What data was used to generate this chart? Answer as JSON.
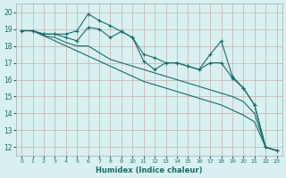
{
  "xlabel": "Humidex (Indice chaleur)",
  "ylabel": "",
  "bg_color": "#d8f0f0",
  "plot_bg_color": "#d8f0f0",
  "grid_color": "#c8b8b8",
  "line_color": "#1a6b6b",
  "xlim": [
    -0.5,
    23.5
  ],
  "ylim": [
    11.5,
    20.5
  ],
  "yticks": [
    12,
    13,
    14,
    15,
    16,
    17,
    18,
    19,
    20
  ],
  "xticks": [
    0,
    1,
    2,
    3,
    4,
    5,
    6,
    7,
    8,
    9,
    10,
    11,
    12,
    13,
    14,
    15,
    16,
    17,
    18,
    19,
    20,
    21,
    22,
    23
  ],
  "lines": [
    {
      "x": [
        0,
        1,
        2,
        3,
        4,
        5,
        6,
        7,
        8,
        9,
        10,
        11,
        12,
        13,
        14,
        15,
        16,
        17,
        18,
        19,
        20,
        21,
        22,
        23
      ],
      "y": [
        18.9,
        18.9,
        18.7,
        18.7,
        18.7,
        18.9,
        19.9,
        19.5,
        19.2,
        18.85,
        18.5,
        17.1,
        16.6,
        17.0,
        17.0,
        16.8,
        16.6,
        17.5,
        18.3,
        16.2,
        15.5,
        14.5,
        12.0,
        11.8
      ],
      "marker": "+"
    },
    {
      "x": [
        0,
        1,
        2,
        3,
        4,
        5,
        6,
        7,
        8,
        9,
        10,
        11,
        12,
        13,
        14,
        15,
        16,
        17,
        18,
        19,
        20,
        21,
        22,
        23
      ],
      "y": [
        18.9,
        18.9,
        18.7,
        18.7,
        18.5,
        18.3,
        19.1,
        19.0,
        18.5,
        18.85,
        18.5,
        17.5,
        17.3,
        17.0,
        17.0,
        16.8,
        16.6,
        17.0,
        17.0,
        16.1,
        15.5,
        14.5,
        12.0,
        11.8
      ],
      "marker": "+"
    },
    {
      "x": [
        0,
        1,
        2,
        3,
        4,
        5,
        6,
        7,
        8,
        9,
        10,
        11,
        12,
        13,
        14,
        15,
        16,
        17,
        18,
        19,
        20,
        21,
        22,
        23
      ],
      "y": [
        18.9,
        18.9,
        18.6,
        18.5,
        18.2,
        18.0,
        18.0,
        17.6,
        17.2,
        17.0,
        16.8,
        16.6,
        16.4,
        16.2,
        16.0,
        15.8,
        15.6,
        15.4,
        15.2,
        15.0,
        14.7,
        14.0,
        12.0,
        11.8
      ],
      "marker": null
    },
    {
      "x": [
        0,
        1,
        2,
        3,
        4,
        5,
        6,
        7,
        8,
        9,
        10,
        11,
        12,
        13,
        14,
        15,
        16,
        17,
        18,
        19,
        20,
        21,
        22,
        23
      ],
      "y": [
        18.9,
        18.9,
        18.6,
        18.3,
        18.0,
        17.7,
        17.4,
        17.1,
        16.8,
        16.5,
        16.2,
        15.9,
        15.7,
        15.5,
        15.3,
        15.1,
        14.9,
        14.7,
        14.5,
        14.2,
        13.9,
        13.5,
        12.0,
        11.8
      ],
      "marker": null
    }
  ]
}
